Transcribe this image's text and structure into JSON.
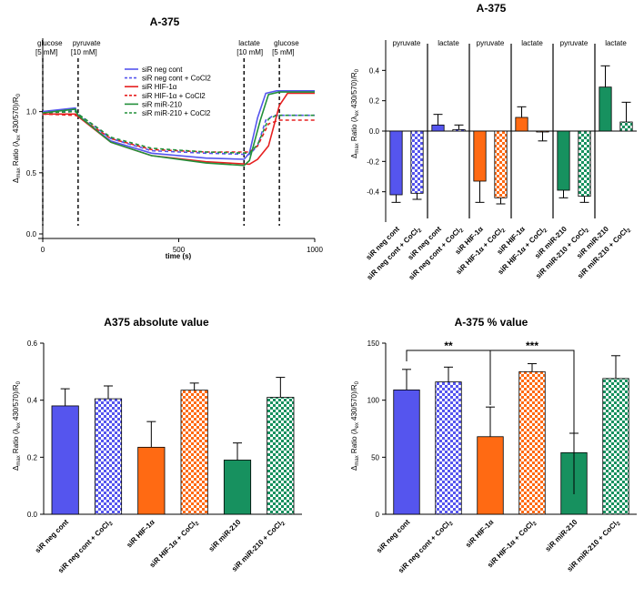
{
  "colors": {
    "blue": "#5555ee",
    "orange": "#ff6a13",
    "green": "#17915f",
    "red": "#e62020",
    "trace_green": "#22903a"
  },
  "chart_data": [
    {
      "id": "trace",
      "type": "line",
      "title": "A-375",
      "xlabel": "time (s)",
      "ylabel": "Δmax Ratio (λex 430/570)/R0",
      "xlim": [
        0,
        1000
      ],
      "ylim": [
        0,
        1.6
      ],
      "xticks": [
        "0",
        "500",
        "1000"
      ],
      "yticks": [
        "0.0",
        "0.5",
        "1.0"
      ],
      "events": [
        {
          "label": "glucose",
          "conc": "[5 mM]",
          "x": 0
        },
        {
          "label": "pyruvate",
          "conc": "[10 mM]",
          "x": 130
        },
        {
          "label": "lactate",
          "conc": "[10 mM]",
          "x": 740
        },
        {
          "label": "glucose",
          "conc": "[5 mM]",
          "x": 870
        }
      ],
      "series": [
        {
          "name": "siR neg cont",
          "color": "blue",
          "dash": false,
          "points": [
            [
              0,
              1.0
            ],
            [
              120,
              1.03
            ],
            [
              130,
              0.96
            ],
            [
              250,
              0.76
            ],
            [
              400,
              0.66
            ],
            [
              600,
              0.62
            ],
            [
              740,
              0.61
            ],
            [
              760,
              0.66
            ],
            [
              790,
              0.95
            ],
            [
              820,
              1.15
            ],
            [
              860,
              1.17
            ],
            [
              1000,
              1.17
            ]
          ]
        },
        {
          "name": "siR neg cont + CoCl2",
          "color": "blue",
          "dash": true,
          "points": [
            [
              0,
              1.0
            ],
            [
              120,
              1.01
            ],
            [
              130,
              0.98
            ],
            [
              250,
              0.78
            ],
            [
              400,
              0.68
            ],
            [
              600,
              0.66
            ],
            [
              760,
              0.65
            ],
            [
              790,
              0.72
            ],
            [
              820,
              0.93
            ],
            [
              850,
              0.97
            ],
            [
              1000,
              0.97
            ]
          ]
        },
        {
          "name": "siR HIF-1α",
          "color": "red",
          "dash": false,
          "points": [
            [
              0,
              0.98
            ],
            [
              120,
              0.98
            ],
            [
              130,
              0.96
            ],
            [
              250,
              0.75
            ],
            [
              400,
              0.64
            ],
            [
              600,
              0.59
            ],
            [
              760,
              0.57
            ],
            [
              790,
              0.61
            ],
            [
              830,
              0.72
            ],
            [
              870,
              1.05
            ],
            [
              900,
              1.15
            ],
            [
              1000,
              1.15
            ]
          ]
        },
        {
          "name": "siR HIF-1α + CoCl2",
          "color": "red",
          "dash": true,
          "points": [
            [
              0,
              0.98
            ],
            [
              120,
              0.97
            ],
            [
              130,
              0.96
            ],
            [
              250,
              0.78
            ],
            [
              400,
              0.69
            ],
            [
              600,
              0.67
            ],
            [
              760,
              0.67
            ],
            [
              790,
              0.72
            ],
            [
              830,
              0.9
            ],
            [
              870,
              0.93
            ],
            [
              1000,
              0.93
            ]
          ]
        },
        {
          "name": "siR miR-210",
          "color": "trace_green",
          "dash": false,
          "points": [
            [
              0,
              0.99
            ],
            [
              120,
              1.02
            ],
            [
              130,
              0.97
            ],
            [
              250,
              0.75
            ],
            [
              400,
              0.64
            ],
            [
              600,
              0.58
            ],
            [
              740,
              0.56
            ],
            [
              760,
              0.6
            ],
            [
              800,
              0.93
            ],
            [
              830,
              1.14
            ],
            [
              870,
              1.16
            ],
            [
              1000,
              1.16
            ]
          ]
        },
        {
          "name": "siR miR-210 + CoCl2",
          "color": "trace_green",
          "dash": true,
          "points": [
            [
              0,
              0.99
            ],
            [
              120,
              1.0
            ],
            [
              130,
              0.98
            ],
            [
              250,
              0.79
            ],
            [
              400,
              0.7
            ],
            [
              600,
              0.67
            ],
            [
              760,
              0.66
            ],
            [
              790,
              0.73
            ],
            [
              830,
              0.94
            ],
            [
              860,
              0.97
            ],
            [
              1000,
              0.97
            ]
          ]
        }
      ]
    },
    {
      "id": "delta",
      "type": "bar",
      "title": "A-375",
      "ylabel": "Δmax Ratio (λex 430/570)/R0",
      "ylim": [
        -0.6,
        0.6
      ],
      "yticks": [
        "-0.4",
        "-0.2",
        "0.0",
        "0.2",
        "0.4"
      ],
      "section_labels": [
        "pyruvate",
        "lactate",
        "pyruvate",
        "lactate",
        "pyruvate",
        "lactate"
      ],
      "categories": [
        "siR neg cont",
        "siR neg cont + CoCl2",
        "siR neg cont",
        "siR neg cont + CoCl2",
        "siR HIF-1α",
        "siR HIF-1α + CoCl2",
        "siR HIF-1α",
        "siR HIF-1α + CoCl2",
        "siR miR-210",
        "siR miR-210 + CoCl2",
        "siR miR-210",
        "siR miR-210 + CoCl2"
      ],
      "values": [
        -0.42,
        -0.41,
        0.04,
        0.01,
        -0.33,
        -0.44,
        0.09,
        -0.005,
        -0.39,
        -0.43,
        0.29,
        0.06
      ],
      "errors": [
        0.05,
        0.04,
        0.07,
        0.03,
        0.14,
        0.04,
        0.07,
        0.06,
        0.05,
        0.04,
        0.14,
        0.13
      ],
      "colors": [
        "blue",
        "blue",
        "blue",
        "blue",
        "orange",
        "orange",
        "orange",
        "orange",
        "green",
        "green",
        "green",
        "green"
      ],
      "patterned": [
        false,
        true,
        false,
        true,
        false,
        true,
        false,
        true,
        false,
        true,
        false,
        true
      ]
    },
    {
      "id": "abs",
      "type": "bar",
      "title": "A375 absolute value",
      "ylabel": "Δmax Ratio (λex 430/570)/R0",
      "ylim": [
        0,
        0.6
      ],
      "yticks": [
        "0.0",
        "0.2",
        "0.4",
        "0.6"
      ],
      "categories": [
        "siR neg cont",
        "siR neg cont + CoCl2",
        "siR HIF-1α",
        "siR HIF-1α + CoCl2",
        "siR miR-210",
        "siR miR-210 + CoCl2"
      ],
      "values": [
        0.38,
        0.405,
        0.235,
        0.435,
        0.19,
        0.41
      ],
      "errors": [
        0.06,
        0.045,
        0.09,
        0.025,
        0.06,
        0.07
      ],
      "colors": [
        "blue",
        "blue",
        "orange",
        "orange",
        "green",
        "green"
      ],
      "patterned": [
        false,
        true,
        false,
        true,
        false,
        true
      ]
    },
    {
      "id": "pct",
      "type": "bar",
      "title": "A-375 % value",
      "ylabel": "Δmax Ratio (λex 430/570)/R0",
      "ylim": [
        0,
        150
      ],
      "yticks": [
        "0",
        "50",
        "100",
        "150"
      ],
      "categories": [
        "siR neg cont",
        "siR neg cont + CoCl2",
        "siR HIF-1α",
        "siR HIF-1α + CoCl2",
        "siR miR-210",
        "siR miR-210 + CoCl2"
      ],
      "values": [
        109,
        116,
        68,
        125,
        54,
        119
      ],
      "errors": [
        18,
        13,
        26,
        7,
        17,
        20
      ],
      "colors": [
        "blue",
        "blue",
        "orange",
        "orange",
        "green",
        "green"
      ],
      "patterned": [
        false,
        true,
        false,
        true,
        false,
        true
      ],
      "significance": [
        {
          "label": "**",
          "from": 0,
          "to": 2
        },
        {
          "label": "***",
          "from": 2,
          "to": 4
        }
      ]
    }
  ]
}
